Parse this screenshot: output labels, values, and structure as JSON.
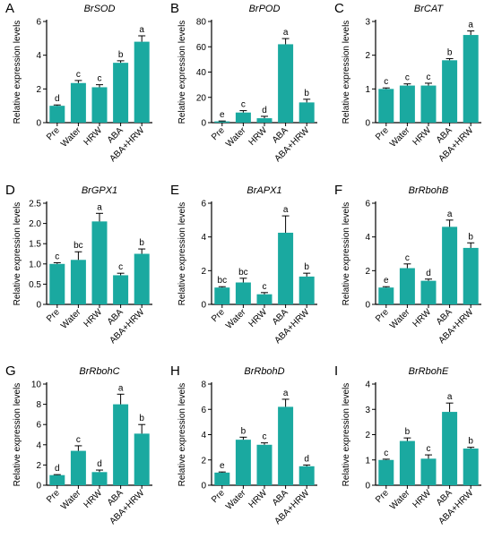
{
  "figure": {
    "bar_color": "#1aa9a0",
    "axis_color": "#000000"
  },
  "chart_data": [
    {
      "panel": "A",
      "type": "bar",
      "title": "BrSOD",
      "ylabel": "Relative expression levels",
      "categories": [
        "Pre",
        "Water",
        "HRW",
        "ABA",
        "ABA+HRW"
      ],
      "values": [
        1.0,
        2.35,
        2.1,
        3.55,
        4.8
      ],
      "errors": [
        0.05,
        0.15,
        0.15,
        0.12,
        0.35
      ],
      "letters": [
        "d",
        "c",
        "c",
        "b",
        "a"
      ],
      "ylim": [
        0,
        6
      ],
      "yticks": [
        0,
        2,
        4,
        6
      ],
      "ytick_labels": [
        "0",
        "2",
        "4",
        "6"
      ]
    },
    {
      "panel": "B",
      "type": "bar",
      "title": "BrPOD",
      "ylabel": "Relative expression levels",
      "categories": [
        "Pre",
        "Water",
        "HRW",
        "ABA",
        "ABA+HRW"
      ],
      "values": [
        1.0,
        8.0,
        3.5,
        62.0,
        16.0
      ],
      "errors": [
        0.3,
        1.5,
        1.5,
        4.5,
        2.5
      ],
      "letters": [
        "e",
        "c",
        "d",
        "a",
        "b"
      ],
      "ylim": [
        0,
        80
      ],
      "yticks": [
        0,
        20,
        40,
        60,
        80
      ],
      "ytick_labels": [
        "0",
        "20",
        "40",
        "60",
        "80"
      ]
    },
    {
      "panel": "C",
      "type": "bar",
      "title": "BrCAT",
      "ylabel": "Relative expression levels",
      "categories": [
        "Pre",
        "Water",
        "HRW",
        "ABA",
        "ABA+HRW"
      ],
      "values": [
        1.0,
        1.1,
        1.1,
        1.85,
        2.6
      ],
      "errors": [
        0.03,
        0.05,
        0.07,
        0.05,
        0.12
      ],
      "letters": [
        "c",
        "c",
        "c",
        "b",
        "a"
      ],
      "ylim": [
        0,
        3
      ],
      "yticks": [
        0,
        1,
        2,
        3
      ],
      "ytick_labels": [
        "0",
        "1",
        "2",
        "3"
      ]
    },
    {
      "panel": "D",
      "type": "bar",
      "title": "BrGPX1",
      "ylabel": "Relative expression levels",
      "categories": [
        "Pre",
        "Water",
        "HRW",
        "ABA",
        "ABA+HRW"
      ],
      "values": [
        1.0,
        1.1,
        2.05,
        0.72,
        1.25
      ],
      "errors": [
        0.03,
        0.2,
        0.2,
        0.05,
        0.12
      ],
      "letters": [
        "c",
        "bc",
        "a",
        "c",
        "b"
      ],
      "ylim": [
        0,
        2.5
      ],
      "yticks": [
        0,
        0.5,
        1.0,
        1.5,
        2.0,
        2.5
      ],
      "ytick_labels": [
        "0",
        "0.5",
        "1.0",
        "1.5",
        "2.0",
        "2.5"
      ]
    },
    {
      "panel": "E",
      "type": "bar",
      "title": "BrAPX1",
      "ylabel": "Relative expression levels",
      "categories": [
        "Pre",
        "Water",
        "HRW",
        "ABA",
        "ABA+HRW"
      ],
      "values": [
        1.0,
        1.3,
        0.6,
        4.25,
        1.65
      ],
      "errors": [
        0.05,
        0.25,
        0.1,
        1.0,
        0.2
      ],
      "letters": [
        "bc",
        "bc",
        "c",
        "a",
        "b"
      ],
      "ylim": [
        0,
        6
      ],
      "yticks": [
        0,
        2,
        4,
        6
      ],
      "ytick_labels": [
        "0",
        "2",
        "4",
        "6"
      ]
    },
    {
      "panel": "F",
      "type": "bar",
      "title": "BrRbohB",
      "ylabel": "Relative expression levels",
      "categories": [
        "Pre",
        "Water",
        "HRW",
        "ABA",
        "ABA+HRW"
      ],
      "values": [
        1.0,
        2.15,
        1.4,
        4.6,
        3.35
      ],
      "errors": [
        0.05,
        0.25,
        0.1,
        0.4,
        0.3
      ],
      "letters": [
        "e",
        "c",
        "d",
        "a",
        "b"
      ],
      "ylim": [
        0,
        6
      ],
      "yticks": [
        0,
        2,
        4,
        6
      ],
      "ytick_labels": [
        "0",
        "2",
        "4",
        "6"
      ]
    },
    {
      "panel": "G",
      "type": "bar",
      "title": "BrRbohC",
      "ylabel": "Relative expression levels",
      "categories": [
        "Pre",
        "Water",
        "HRW",
        "ABA",
        "ABA+HRW"
      ],
      "values": [
        1.0,
        3.4,
        1.3,
        8.0,
        5.1
      ],
      "errors": [
        0.05,
        0.5,
        0.2,
        1.0,
        0.9
      ],
      "letters": [
        "d",
        "c",
        "d",
        "a",
        "b"
      ],
      "ylim": [
        0,
        10
      ],
      "yticks": [
        0,
        2,
        4,
        6,
        8,
        10
      ],
      "ytick_labels": [
        "0",
        "2",
        "4",
        "6",
        "8",
        "10"
      ]
    },
    {
      "panel": "H",
      "type": "bar",
      "title": "BrRbohD",
      "ylabel": "Relative expression levels",
      "categories": [
        "Pre",
        "Water",
        "HRW",
        "ABA",
        "ABA+HRW"
      ],
      "values": [
        1.0,
        3.6,
        3.2,
        6.2,
        1.5
      ],
      "errors": [
        0.05,
        0.2,
        0.15,
        0.6,
        0.1
      ],
      "letters": [
        "e",
        "b",
        "c",
        "a",
        "d"
      ],
      "ylim": [
        0,
        8
      ],
      "yticks": [
        0,
        2,
        4,
        6,
        8
      ],
      "ytick_labels": [
        "0",
        "2",
        "4",
        "6",
        "8"
      ]
    },
    {
      "panel": "I",
      "type": "bar",
      "title": "BrRbohE",
      "ylabel": "Relative expression levels",
      "categories": [
        "Pre",
        "Water",
        "HRW",
        "ABA",
        "ABA+HRW"
      ],
      "values": [
        1.0,
        1.75,
        1.05,
        2.9,
        1.45
      ],
      "errors": [
        0.03,
        0.12,
        0.15,
        0.35,
        0.05
      ],
      "letters": [
        "c",
        "b",
        "c",
        "a",
        "b"
      ],
      "ylim": [
        0,
        4
      ],
      "yticks": [
        0,
        1,
        2,
        3,
        4
      ],
      "ytick_labels": [
        "0",
        "1",
        "2",
        "3",
        "4"
      ]
    }
  ]
}
